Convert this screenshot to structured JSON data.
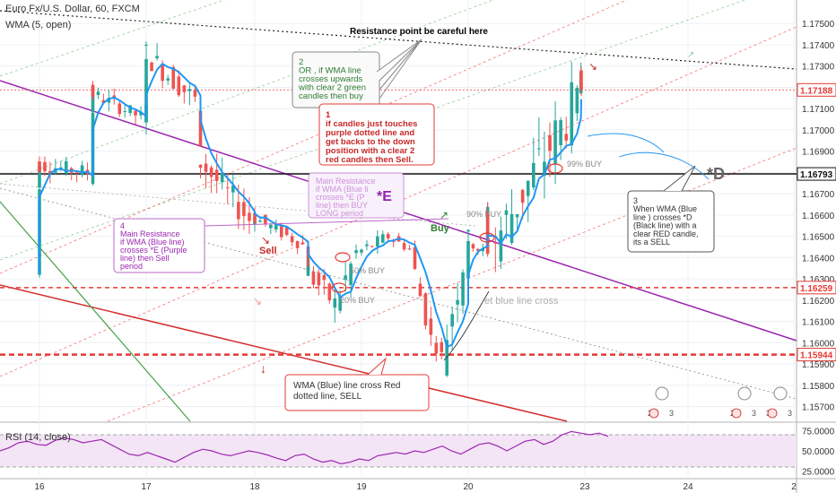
{
  "header": {
    "symbol_title": "Euro Fx/U.S. Dollar, 60, FXCM",
    "indicator_title": "WMA (5, open)"
  },
  "rsi_panel": {
    "title": "RSI (14, close)"
  },
  "colors": {
    "up_candle": "#26a69a",
    "down_candle": "#ef5350",
    "wma": "#2196f3",
    "purple_trend": "#9c27b0",
    "red_dotted": "#e00000",
    "resistance_line": "#000000",
    "rsi_line": "#9c27b0",
    "rsi_band": "#f3e5f5"
  },
  "chart_data": [
    {
      "type": "candlestick",
      "instrument": "Euro Fx/U.S. Dollar, 60, FXCM",
      "x_ticks": [
        "16",
        "17",
        "18",
        "19",
        "20",
        "23",
        "24",
        "2"
      ],
      "y_ticks": [
        "1.17500",
        "1.17400",
        "1.17300",
        "1.17200",
        "1.17100",
        "1.17000",
        "1.16900",
        "1.16800",
        "1.16700",
        "1.16600",
        "1.16500",
        "1.16400",
        "1.16300",
        "1.16200",
        "1.16100",
        "1.16000",
        "1.15900",
        "1.15800",
        "1.15700"
      ],
      "ylim": [
        1.1566,
        1.1756
      ],
      "price_tags": [
        {
          "value": "1.17188",
          "kind": "current"
        },
        {
          "value": "1.16793",
          "kind": "black-level"
        },
        {
          "value": "1.16259",
          "kind": "red-dashed"
        },
        {
          "value": "1.15944",
          "kind": "red-dashed"
        }
      ],
      "annotations": [
        {
          "id": "resistance",
          "text": "Resistance point be careful here"
        },
        {
          "id": "note2",
          "lines": [
            "2",
            "OR , if WMA line",
            "crosses upwards",
            "with clear 2 green",
            "candles then buy"
          ]
        },
        {
          "id": "note1",
          "lines": [
            "1",
            "if candles just touches",
            "purple dotted line and",
            "get backs to the down",
            "position with a clear 2",
            "red candles then Sell."
          ]
        },
        {
          "id": "note_main_faded",
          "lines": [
            "Main Resistance",
            "if WMA (Blue li",
            "crosses *E (P",
            "line) then BUY",
            "LONG period"
          ]
        },
        {
          "id": "mark_e",
          "text": "*E"
        },
        {
          "id": "note4",
          "lines": [
            "4",
            "Main Resistance",
            "if WMA (Blue line)",
            "crosses *E (Purple",
            "line)  then Sell",
            "period"
          ]
        },
        {
          "id": "note3",
          "lines": [
            "3",
            "When WMA (Blue",
            "line ) crosses *D",
            "(Black line) with a",
            "clear RED candle,",
            "its a SELL"
          ]
        },
        {
          "id": "note_wma_red",
          "lines": [
            "WMA (Blue)  line cross Red",
            "dotted line, SELL"
          ]
        },
        {
          "id": "mark_d",
          "text": "*D"
        },
        {
          "id": "sell_label",
          "text": "Sell"
        },
        {
          "id": "buy_label",
          "text": "Buy"
        },
        {
          "id": "pct_99",
          "text": "99% BUY"
        },
        {
          "id": "pct_90",
          "text": "90% BUY"
        },
        {
          "id": "pct_50",
          "text": "50% BUY"
        },
        {
          "id": "pct_20",
          "text": "20% BUY"
        },
        {
          "id": "blue_cross",
          "text": "et blue line cross"
        }
      ],
      "event_badges": [
        {
          "text": "2 4",
          "count": "3"
        },
        {
          "text": "2",
          "count": "3"
        },
        {
          "text": "3",
          "count": "3"
        }
      ],
      "series": [
        {
          "name": "Euro Fx/U.S. Dollar, 60, FXCM",
          "ohlc_by_segment": [
            {
              "t": "16",
              "o": 1.1632,
              "h": 1.1652,
              "l": 1.1626,
              "c": 1.1648
            },
            {
              "t": "16",
              "o": 1.1648,
              "h": 1.1678,
              "l": 1.1642,
              "c": 1.1672
            },
            {
              "t": "16",
              "o": 1.1672,
              "h": 1.1692,
              "l": 1.1665,
              "c": 1.1684
            },
            {
              "t": "16",
              "o": 1.1684,
              "h": 1.1696,
              "l": 1.1674,
              "c": 1.168
            },
            {
              "t": "16.5",
              "o": 1.168,
              "h": 1.1718,
              "l": 1.1676,
              "c": 1.1712
            },
            {
              "t": "16.5",
              "o": 1.1712,
              "h": 1.1726,
              "l": 1.1702,
              "c": 1.1718
            },
            {
              "t": "16.5",
              "o": 1.1718,
              "h": 1.1722,
              "l": 1.1702,
              "c": 1.1706
            },
            {
              "t": "17",
              "o": 1.1706,
              "h": 1.1716,
              "l": 1.1698,
              "c": 1.171
            },
            {
              "t": "17",
              "o": 1.171,
              "h": 1.1745,
              "l": 1.1706,
              "c": 1.1738
            },
            {
              "t": "17",
              "o": 1.1738,
              "h": 1.1742,
              "l": 1.1708,
              "c": 1.1714
            },
            {
              "t": "17.5",
              "o": 1.1714,
              "h": 1.1716,
              "l": 1.1682,
              "c": 1.1688
            },
            {
              "t": "17.5",
              "o": 1.1688,
              "h": 1.1692,
              "l": 1.1652,
              "c": 1.1658
            },
            {
              "t": "18",
              "o": 1.1658,
              "h": 1.1668,
              "l": 1.1652,
              "c": 1.166
            },
            {
              "t": "18",
              "o": 1.166,
              "h": 1.1662,
              "l": 1.1644,
              "c": 1.1646
            },
            {
              "t": "18.5",
              "o": 1.1646,
              "h": 1.1652,
              "l": 1.163,
              "c": 1.1636
            },
            {
              "t": "18.5",
              "o": 1.1636,
              "h": 1.164,
              "l": 1.1605,
              "c": 1.1618
            },
            {
              "t": "18.8",
              "o": 1.1618,
              "h": 1.1648,
              "l": 1.161,
              "c": 1.1642
            },
            {
              "t": "19",
              "o": 1.1642,
              "h": 1.1656,
              "l": 1.1638,
              "c": 1.165
            },
            {
              "t": "19.3",
              "o": 1.165,
              "h": 1.1656,
              "l": 1.1642,
              "c": 1.1644
            },
            {
              "t": "19.5",
              "o": 1.1644,
              "h": 1.1646,
              "l": 1.1616,
              "c": 1.1622
            },
            {
              "t": "19.6",
              "o": 1.1622,
              "h": 1.1626,
              "l": 1.1598,
              "c": 1.1602
            },
            {
              "t": "19.7",
              "o": 1.1602,
              "h": 1.1606,
              "l": 1.1588,
              "c": 1.1594
            },
            {
              "t": "19.8",
              "o": 1.1594,
              "h": 1.1648,
              "l": 1.1592,
              "c": 1.1638
            },
            {
              "t": "20",
              "o": 1.1638,
              "h": 1.1676,
              "l": 1.1626,
              "c": 1.1652
            },
            {
              "t": "20",
              "o": 1.1652,
              "h": 1.1656,
              "l": 1.1634,
              "c": 1.1642
            },
            {
              "t": "20.5",
              "o": 1.1642,
              "h": 1.1668,
              "l": 1.1638,
              "c": 1.1662
            },
            {
              "t": "20.5",
              "o": 1.1662,
              "h": 1.1666,
              "l": 1.164,
              "c": 1.1644
            },
            {
              "t": "20.7",
              "o": 1.1644,
              "h": 1.1716,
              "l": 1.1642,
              "c": 1.171
            },
            {
              "t": "22.8",
              "o": 1.171,
              "h": 1.1724,
              "l": 1.17,
              "c": 1.1716
            },
            {
              "t": "22.9",
              "o": 1.1716,
              "h": 1.174,
              "l": 1.1714,
              "c": 1.1728
            },
            {
              "t": "23",
              "o": 1.1728,
              "h": 1.173,
              "l": 1.1716,
              "c": 1.17188
            }
          ]
        },
        {
          "name": "WMA (5, open)"
        }
      ]
    },
    {
      "type": "line",
      "title": "RSI (14, close)",
      "y_ticks": [
        "75.0000",
        "50.0000",
        "25.0000"
      ],
      "ylim": [
        20,
        80
      ],
      "band": [
        30,
        70
      ],
      "series": [
        {
          "name": "RSI (14, close)",
          "values": [
            50,
            54,
            60,
            62,
            58,
            57,
            63,
            66,
            64,
            60,
            62,
            64,
            58,
            52,
            46,
            44,
            48,
            44,
            40,
            36,
            42,
            48,
            52,
            50,
            46,
            44,
            47,
            50,
            48,
            45,
            41,
            38,
            44,
            46,
            40,
            36,
            38,
            34,
            36,
            40,
            38,
            44,
            46,
            48,
            46,
            50,
            48,
            52,
            56,
            50,
            46,
            52,
            58,
            60,
            56,
            50,
            56,
            62,
            64,
            58,
            62,
            70,
            74,
            72,
            70,
            72,
            68
          ]
        }
      ]
    }
  ]
}
